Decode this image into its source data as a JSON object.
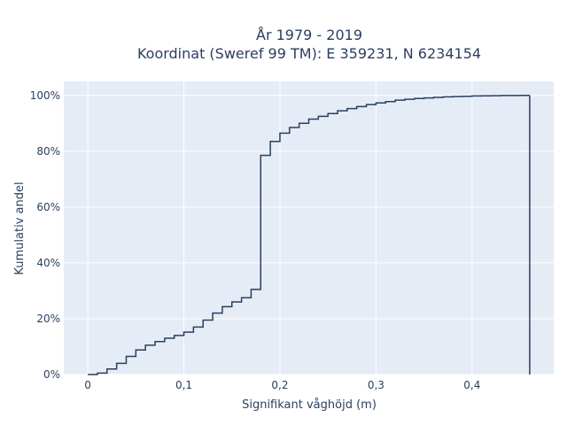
{
  "chart_data": {
    "type": "line",
    "line_shape": "step-cumulative",
    "title_line1": "År 1979 - 2019",
    "title_line2": "Koordinat (Sweref 99 TM): E 359231, N 6234154",
    "xlabel": "Signifikant våghöjd (m)",
    "ylabel": "Kumulativ andel",
    "xlim": [
      -0.025,
      0.485
    ],
    "ylim": [
      0,
      1.05
    ],
    "x_ticks": [
      0,
      0.1,
      0.2,
      0.3,
      0.4
    ],
    "x_tick_labels": [
      "0",
      "0,1",
      "0,2",
      "0,3",
      "0,4"
    ],
    "y_ticks": [
      0,
      0.2,
      0.4,
      0.6,
      0.8,
      1.0
    ],
    "y_tick_labels": [
      "0%",
      "20%",
      "40%",
      "60%",
      "80%",
      "100%"
    ],
    "grid": true,
    "colors": {
      "line": "#2a3f5f",
      "plot_bg": "#e5ecf6",
      "grid": "#ffffff",
      "text": "#2a3f5f"
    },
    "series": [
      {
        "x": [
          0,
          0.01,
          0.02,
          0.03,
          0.04,
          0.05,
          0.06,
          0.07,
          0.08,
          0.09,
          0.1,
          0.11,
          0.12,
          0.13,
          0.14,
          0.15,
          0.16,
          0.17,
          0.18,
          0.19,
          0.2,
          0.21,
          0.22,
          0.23,
          0.24,
          0.25,
          0.26,
          0.27,
          0.28,
          0.29,
          0.3,
          0.31,
          0.32,
          0.33,
          0.34,
          0.35,
          0.36,
          0.37,
          0.38,
          0.39,
          0.4,
          0.41,
          0.42,
          0.43,
          0.44,
          0.45,
          0.46
        ],
        "y": [
          0.0,
          0.005,
          0.02,
          0.04,
          0.065,
          0.088,
          0.105,
          0.118,
          0.13,
          0.14,
          0.152,
          0.17,
          0.195,
          0.22,
          0.243,
          0.26,
          0.275,
          0.305,
          0.785,
          0.835,
          0.865,
          0.885,
          0.9,
          0.915,
          0.925,
          0.935,
          0.945,
          0.953,
          0.96,
          0.967,
          0.973,
          0.978,
          0.983,
          0.986,
          0.989,
          0.991,
          0.993,
          0.995,
          0.996,
          0.997,
          0.998,
          0.9985,
          0.999,
          0.9995,
          0.9997,
          0.9999,
          1.0
        ]
      }
    ]
  }
}
